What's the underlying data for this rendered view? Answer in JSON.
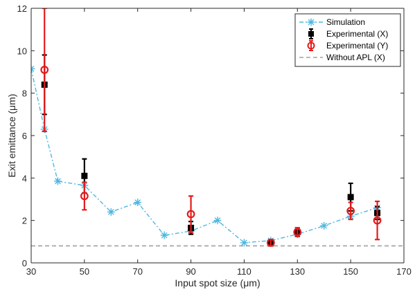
{
  "chart_data": {
    "type": "line",
    "xlabel": "Input spot size (μm)",
    "ylabel": "Exit emittance (μm)",
    "xlim": [
      30,
      170
    ],
    "ylim": [
      0,
      12
    ],
    "xticks": [
      30,
      50,
      70,
      90,
      110,
      130,
      150,
      170
    ],
    "yticks": [
      0,
      2,
      4,
      6,
      8,
      10,
      12
    ],
    "grid": false,
    "legend_position": "top-right",
    "series": [
      {
        "name": "Simulation",
        "kind": "line-star",
        "color": "#4db8e0",
        "x": [
          30,
          35,
          40,
          50,
          60,
          70,
          80,
          90,
          100,
          110,
          120,
          130,
          140,
          150,
          160
        ],
        "y": [
          9.15,
          6.3,
          3.85,
          3.65,
          2.4,
          2.85,
          1.3,
          1.5,
          2.0,
          0.95,
          1.05,
          1.35,
          1.75,
          2.2,
          2.6
        ]
      },
      {
        "name": "Experimental (X)",
        "kind": "errorbar-square",
        "color": "#000000",
        "x": [
          35,
          50,
          90,
          120,
          130,
          150,
          160
        ],
        "y": [
          8.4,
          4.1,
          1.65,
          0.95,
          1.45,
          3.1,
          2.35
        ],
        "err": [
          1.4,
          0.8,
          0.3,
          0.15,
          0.2,
          0.65,
          0.3
        ]
      },
      {
        "name": "Experimental (Y)",
        "kind": "errorbar-circle",
        "color": "#e41a1c",
        "x": [
          35,
          50,
          90,
          120,
          130,
          150,
          160
        ],
        "y": [
          9.1,
          3.15,
          2.3,
          0.95,
          1.45,
          2.45,
          2.0
        ],
        "err": [
          2.9,
          0.65,
          0.85,
          0.15,
          0.2,
          0.4,
          0.9
        ]
      },
      {
        "name": "Without APL (X)",
        "kind": "hline-dashed",
        "color": "#a0a0a0",
        "y": 0.8
      }
    ]
  }
}
